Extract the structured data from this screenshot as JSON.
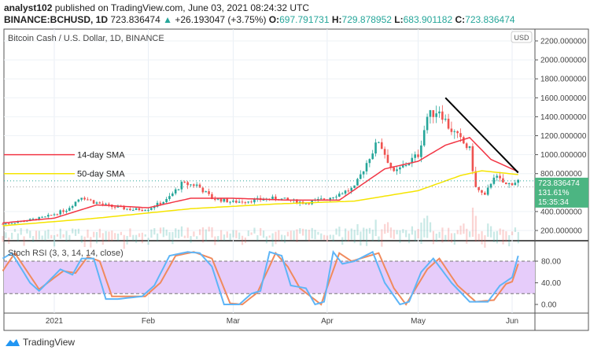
{
  "header": {
    "author": "analyst102",
    "published": "published on TradingView.com, June 03, 2021 08:24:32 UTC",
    "symbol": "BINANCE:BCHUSD, 1D",
    "last": "723.836474",
    "change": "+26.193047 (+3.75%)",
    "open_label": "O:",
    "open": "697.791731",
    "high_label": "H:",
    "high": "729.878952",
    "low_label": "L:",
    "low": "683.901182",
    "close_label": "C:",
    "close": "723.836474"
  },
  "brand": "TradingView",
  "colors": {
    "up": "#26a69a",
    "down": "#ef5350",
    "sma14": "#f23645",
    "sma50": "#f5e400",
    "trend": "#000000",
    "k": "#5eb5f7",
    "d": "#f08a5d",
    "rsiBand": "#e6ccfa",
    "priceTag": "#4cb582"
  },
  "chart_data": [
    {
      "type": "candlestick",
      "title": "Bitcoin Cash / U.S. Dollar, 1D, BINANCE",
      "currency": "USD",
      "ylim": [
        100,
        2250
      ],
      "yticks": [
        200,
        400,
        800,
        1000,
        1200,
        1400,
        1600,
        1800,
        2000,
        2200
      ],
      "ytick_labels": [
        "200.000000",
        "400.000000",
        "800.000000",
        "1000.000000",
        "1200.000000",
        "1400.000000",
        "1600.000000",
        "1800.000000",
        "2000.000000",
        "2200.000000"
      ],
      "xticks": [
        {
          "date": "2021-01-01",
          "label": "2021"
        },
        {
          "date": "2021-02-01",
          "label": "Feb"
        },
        {
          "date": "2021-03-01",
          "label": "Mar"
        },
        {
          "date": "2021-04-01",
          "label": "Apr"
        },
        {
          "date": "2021-05-01",
          "label": "May"
        },
        {
          "date": "2021-06-01",
          "label": "Jun"
        }
      ],
      "xlim": [
        "2020-12-14",
        "2021-06-18"
      ],
      "price_tag": {
        "price": "723.836474",
        "pct": "131.61%",
        "countdown": "15:35:34"
      },
      "close": [
        [
          "2020-12-15",
          270
        ],
        [
          "2020-12-22",
          300
        ],
        [
          "2020-12-29",
          340
        ],
        [
          "2021-01-05",
          420
        ],
        [
          "2021-01-10",
          560
        ],
        [
          "2021-01-14",
          500
        ],
        [
          "2021-01-20",
          450
        ],
        [
          "2021-01-27",
          420
        ],
        [
          "2021-02-01",
          430
        ],
        [
          "2021-02-07",
          520
        ],
        [
          "2021-02-12",
          690
        ],
        [
          "2021-02-17",
          680
        ],
        [
          "2021-02-22",
          540
        ],
        [
          "2021-03-01",
          500
        ],
        [
          "2021-03-08",
          520
        ],
        [
          "2021-03-15",
          540
        ],
        [
          "2021-03-25",
          490
        ],
        [
          "2021-04-01",
          540
        ],
        [
          "2021-04-10",
          650
        ],
        [
          "2021-04-15",
          980
        ],
        [
          "2021-04-18",
          1150
        ],
        [
          "2021-04-23",
          800
        ],
        [
          "2021-05-01",
          1000
        ],
        [
          "2021-05-04",
          1400
        ],
        [
          "2021-05-08",
          1480
        ],
        [
          "2021-05-11",
          1300
        ],
        [
          "2021-05-15",
          1150
        ],
        [
          "2021-05-18",
          1050
        ],
        [
          "2021-05-20",
          650
        ],
        [
          "2021-05-23",
          560
        ],
        [
          "2021-05-26",
          780
        ],
        [
          "2021-05-30",
          680
        ],
        [
          "2021-06-03",
          724
        ]
      ],
      "series": [
        {
          "name": "14-day SMA",
          "color": "#f23645",
          "values": [
            [
              "2020-12-15",
              280
            ],
            [
              "2021-01-01",
              330
            ],
            [
              "2021-01-15",
              470
            ],
            [
              "2021-02-01",
              440
            ],
            [
              "2021-02-15",
              540
            ],
            [
              "2021-03-01",
              540
            ],
            [
              "2021-03-20",
              520
            ],
            [
              "2021-04-05",
              520
            ],
            [
              "2021-04-20",
              850
            ],
            [
              "2021-05-01",
              930
            ],
            [
              "2021-05-10",
              1100
            ],
            [
              "2021-05-18",
              1180
            ],
            [
              "2021-05-25",
              950
            ],
            [
              "2021-06-03",
              820
            ]
          ]
        },
        {
          "name": "50-day SMA",
          "color": "#f5e400",
          "values": [
            [
              "2020-12-15",
              250
            ],
            [
              "2021-01-15",
              330
            ],
            [
              "2021-02-15",
              430
            ],
            [
              "2021-03-15",
              480
            ],
            [
              "2021-04-10",
              510
            ],
            [
              "2021-05-01",
              620
            ],
            [
              "2021-05-15",
              780
            ],
            [
              "2021-05-22",
              830
            ],
            [
              "2021-06-03",
              790
            ]
          ]
        }
      ],
      "annotations": [
        {
          "type": "trendline",
          "from": [
            "2021-05-10",
            1600
          ],
          "to": [
            "2021-06-03",
            810
          ]
        },
        {
          "text": "14-day SMA",
          "price": 1000
        },
        {
          "text": "50-day SMA",
          "price": 800
        }
      ]
    },
    {
      "type": "line",
      "title": "Stoch RSI (3, 3, 14, 14, close)",
      "ylim": [
        -15,
        110
      ],
      "yticks": [
        0,
        40,
        80
      ],
      "ytick_labels": [
        "0.00",
        "40.00",
        "80.00"
      ],
      "bands": [
        20,
        80
      ],
      "series": [
        {
          "name": "K",
          "color": "#5eb5f7",
          "values": [
            [
              "2020-12-15",
              85
            ],
            [
              "2020-12-18",
              95
            ],
            [
              "2020-12-24",
              40
            ],
            [
              "2020-12-27",
              25
            ],
            [
              "2021-01-03",
              65
            ],
            [
              "2021-01-07",
              55
            ],
            [
              "2021-01-10",
              85
            ],
            [
              "2021-01-14",
              85
            ],
            [
              "2021-01-18",
              10
            ],
            [
              "2021-01-22",
              10
            ],
            [
              "2021-01-30",
              15
            ],
            [
              "2021-02-03",
              35
            ],
            [
              "2021-02-08",
              90
            ],
            [
              "2021-02-14",
              97
            ],
            [
              "2021-02-18",
              95
            ],
            [
              "2021-02-22",
              70
            ],
            [
              "2021-02-26",
              0
            ],
            [
              "2021-03-03",
              0
            ],
            [
              "2021-03-07",
              20
            ],
            [
              "2021-03-10",
              25
            ],
            [
              "2021-03-13",
              97
            ],
            [
              "2021-03-17",
              90
            ],
            [
              "2021-03-20",
              35
            ],
            [
              "2021-03-25",
              30
            ],
            [
              "2021-03-28",
              0
            ],
            [
              "2021-03-31",
              5
            ],
            [
              "2021-04-03",
              97
            ],
            [
              "2021-04-06",
              75
            ],
            [
              "2021-04-10",
              80
            ],
            [
              "2021-04-16",
              97
            ],
            [
              "2021-04-20",
              40
            ],
            [
              "2021-04-25",
              0
            ],
            [
              "2021-04-28",
              5
            ],
            [
              "2021-05-02",
              60
            ],
            [
              "2021-05-06",
              85
            ],
            [
              "2021-05-12",
              40
            ],
            [
              "2021-05-18",
              5
            ],
            [
              "2021-05-24",
              5
            ],
            [
              "2021-05-28",
              35
            ],
            [
              "2021-06-01",
              50
            ],
            [
              "2021-06-03",
              90
            ]
          ]
        },
        {
          "name": "D",
          "color": "#f08a5d",
          "values": [
            [
              "2020-12-15",
              62
            ],
            [
              "2020-12-19",
              95
            ],
            [
              "2020-12-27",
              28
            ],
            [
              "2021-01-04",
              62
            ],
            [
              "2021-01-08",
              58
            ],
            [
              "2021-01-12",
              88
            ],
            [
              "2021-01-16",
              80
            ],
            [
              "2021-01-20",
              15
            ],
            [
              "2021-01-31",
              15
            ],
            [
              "2021-02-05",
              40
            ],
            [
              "2021-02-10",
              90
            ],
            [
              "2021-02-16",
              97
            ],
            [
              "2021-02-22",
              85
            ],
            [
              "2021-02-28",
              2
            ],
            [
              "2021-03-04",
              0
            ],
            [
              "2021-03-09",
              22
            ],
            [
              "2021-03-15",
              95
            ],
            [
              "2021-03-19",
              70
            ],
            [
              "2021-03-23",
              30
            ],
            [
              "2021-03-30",
              0
            ],
            [
              "2021-04-05",
              95
            ],
            [
              "2021-04-09",
              80
            ],
            [
              "2021-04-18",
              95
            ],
            [
              "2021-04-23",
              30
            ],
            [
              "2021-04-27",
              0
            ],
            [
              "2021-05-04",
              65
            ],
            [
              "2021-05-08",
              85
            ],
            [
              "2021-05-14",
              35
            ],
            [
              "2021-05-20",
              5
            ],
            [
              "2021-05-26",
              8
            ],
            [
              "2021-05-30",
              38
            ],
            [
              "2021-06-01",
              42
            ],
            [
              "2021-06-03",
              75
            ]
          ]
        }
      ]
    }
  ]
}
